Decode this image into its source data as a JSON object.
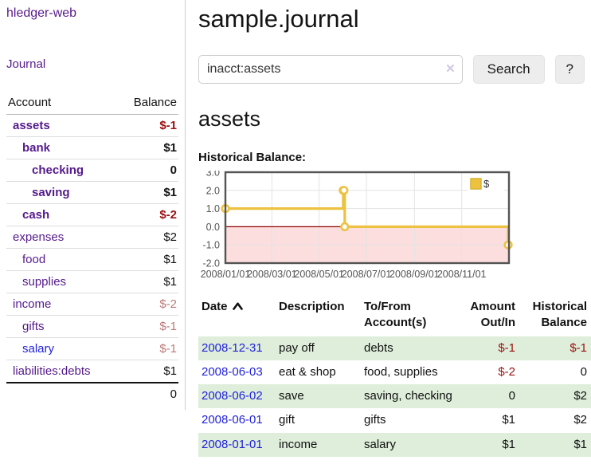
{
  "app": {
    "title": "hledger-web",
    "nav_journal_label": "Journal"
  },
  "colors": {
    "link_purple": "#551a8b",
    "link_blue": "#2222dd",
    "negative_strong": "#9b1010",
    "negative_weak": "#be7878",
    "row_tint_green": "#deeeda",
    "chart_line_gold": "#edc240",
    "chart_negative_fill": "#fcdede",
    "chart_zero_line": "#8b0000",
    "chart_border": "#545454"
  },
  "sidebar": {
    "header": {
      "account": "Account",
      "balance": "Balance"
    },
    "accounts": [
      {
        "name": "assets",
        "level": 0,
        "bold": true,
        "name_color": "purple",
        "balance": "$-1",
        "balance_style": "neg-strong",
        "balance_bold": true
      },
      {
        "name": "bank",
        "level": 1,
        "bold": true,
        "name_color": "purple",
        "balance": "$1",
        "balance_style": "pos",
        "balance_bold": true
      },
      {
        "name": "checking",
        "level": 2,
        "bold": true,
        "name_color": "purple",
        "balance": "0",
        "balance_style": "pos",
        "balance_bold": true
      },
      {
        "name": "saving",
        "level": 2,
        "bold": true,
        "name_color": "purple",
        "balance": "$1",
        "balance_style": "pos",
        "balance_bold": true
      },
      {
        "name": "cash",
        "level": 1,
        "bold": true,
        "name_color": "purple",
        "balance": "$-2",
        "balance_style": "neg-strong",
        "balance_bold": true
      },
      {
        "name": "expenses",
        "level": 0,
        "bold": false,
        "name_color": "purple",
        "balance": "$2",
        "balance_style": "pos",
        "balance_bold": false
      },
      {
        "name": "food",
        "level": 1,
        "bold": false,
        "name_color": "purple",
        "balance": "$1",
        "balance_style": "pos",
        "balance_bold": false
      },
      {
        "name": "supplies",
        "level": 1,
        "bold": false,
        "name_color": "purple",
        "balance": "$1",
        "balance_style": "pos",
        "balance_bold": false
      },
      {
        "name": "income",
        "level": 0,
        "bold": false,
        "name_color": "purple",
        "balance": "$-2",
        "balance_style": "neg-weak",
        "balance_bold": false
      },
      {
        "name": "gifts",
        "level": 1,
        "bold": false,
        "name_color": "purple",
        "balance": "$-1",
        "balance_style": "neg-weak",
        "balance_bold": false
      },
      {
        "name": "salary",
        "level": 1,
        "bold": false,
        "name_color": "blue",
        "balance": "$-1",
        "balance_style": "neg-weak",
        "balance_bold": false
      },
      {
        "name": "liabilities:debts",
        "level": 0,
        "bold": false,
        "name_color": "purple",
        "balance": "$1",
        "balance_style": "pos",
        "balance_bold": false
      }
    ],
    "total": "0"
  },
  "main": {
    "title": "sample.journal",
    "search": {
      "value": "inacct:assets",
      "clear_icon": "✕",
      "button_label": "Search",
      "help_label": "?"
    },
    "account_heading": "assets",
    "chart_heading": "Historical Balance:"
  },
  "chart_data": {
    "type": "step-line",
    "title": "Historical Balance",
    "series": [
      {
        "name": "$",
        "color": "#edc240",
        "points": [
          [
            "2008-01-01",
            1
          ],
          [
            "2008-06-01",
            2
          ],
          [
            "2008-06-02",
            2
          ],
          [
            "2008-06-03",
            0
          ],
          [
            "2008-12-31",
            -1
          ]
        ]
      }
    ],
    "x_range": [
      "2008-01-01",
      "2009-01-01"
    ],
    "ylim": [
      -2,
      3
    ],
    "y_ticks": [
      3.0,
      2.0,
      1.0,
      0.0,
      -1.0,
      -2.0
    ],
    "x_ticks": [
      {
        "date": "2008-01-01",
        "label": "2008/01/01"
      },
      {
        "date": "2008-03-01",
        "label": "2008/03/01"
      },
      {
        "date": "2008-05-01",
        "label": "2008/05/01"
      },
      {
        "date": "2008-07-01",
        "label": "2008/07/01"
      },
      {
        "date": "2008-09-01",
        "label": "2008/09/01"
      },
      {
        "date": "2008-11-01",
        "label": "2008/11/01"
      }
    ],
    "grid": true,
    "legend": {
      "label": "$",
      "position": "top-right"
    }
  },
  "register": {
    "headers": [
      "Date",
      "Description",
      "To/From Account(s)",
      "Amount Out/In",
      "Historical Balance"
    ],
    "sort_icon": "chevron-up",
    "rows": [
      {
        "date": "2008-12-31",
        "description": "pay off",
        "accounts": "debts",
        "amount": "$-1",
        "amount_neg": true,
        "balance": "$-1",
        "balance_neg": true,
        "tinted": true
      },
      {
        "date": "2008-06-03",
        "description": "eat & shop",
        "accounts": "food, supplies",
        "amount": "$-2",
        "amount_neg": true,
        "balance": "0",
        "balance_neg": false,
        "tinted": false
      },
      {
        "date": "2008-06-02",
        "description": "save",
        "accounts": "saving, checking",
        "amount": "0",
        "amount_neg": false,
        "balance": "$2",
        "balance_neg": false,
        "tinted": true
      },
      {
        "date": "2008-06-01",
        "description": "gift",
        "accounts": "gifts",
        "amount": "$1",
        "amount_neg": false,
        "balance": "$2",
        "balance_neg": false,
        "tinted": false
      },
      {
        "date": "2008-01-01",
        "description": "income",
        "accounts": "salary",
        "amount": "$1",
        "amount_neg": false,
        "balance": "$1",
        "balance_neg": false,
        "tinted": true
      }
    ]
  }
}
